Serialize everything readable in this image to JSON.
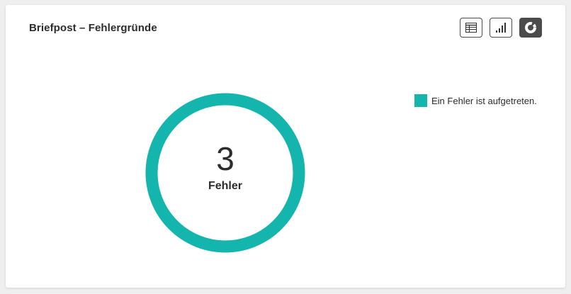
{
  "card": {
    "title": "Briefpost – Fehlergründe"
  },
  "view_buttons": [
    {
      "icon": "table-icon",
      "active": false
    },
    {
      "icon": "bar-chart-icon",
      "active": false
    },
    {
      "icon": "donut-chart-icon",
      "active": true
    }
  ],
  "chart_data": {
    "type": "pie",
    "style": "donut",
    "center_value": "3",
    "center_label": "Fehler",
    "series": [
      {
        "name": "Ein Fehler ist aufgetreten.",
        "value": 3,
        "color": "#14b5ad"
      }
    ],
    "legend_position": "top-right"
  }
}
